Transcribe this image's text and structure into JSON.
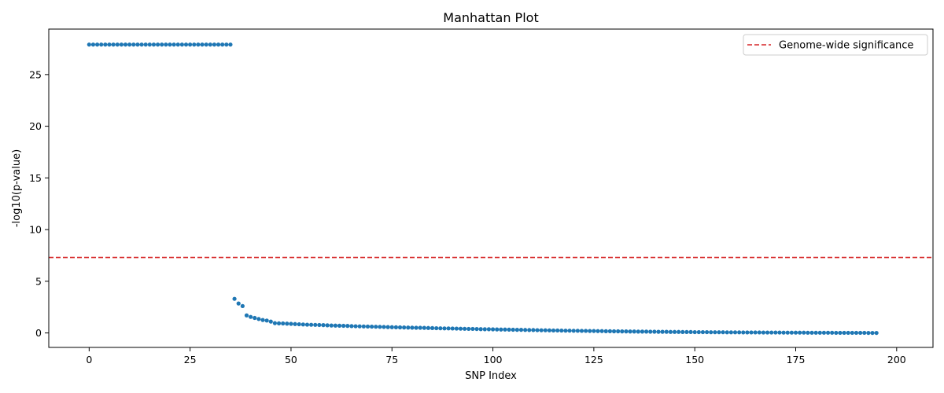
{
  "chart_data": {
    "type": "scatter",
    "title": "Manhattan Plot",
    "xlabel": "SNP Index",
    "ylabel": "-log10(p-value)",
    "xlim": [
      -10,
      209
    ],
    "ylim": [
      -1.4,
      29.4
    ],
    "xticks": [
      0,
      25,
      50,
      75,
      100,
      125,
      150,
      175,
      200
    ],
    "yticks": [
      0,
      5,
      10,
      15,
      20,
      25
    ],
    "grid": false,
    "legend_position": "top-right",
    "colors": {
      "points": "#1f77b4",
      "threshold": "#d62728"
    },
    "threshold": {
      "label": "Genome-wide significance",
      "y": 7.3
    },
    "series": [
      {
        "x_start": 0,
        "y": [
          27.9,
          27.9,
          27.9,
          27.9,
          27.9,
          27.9,
          27.9,
          27.9,
          27.9,
          27.9,
          27.9,
          27.9,
          27.9,
          27.9,
          27.9,
          27.9,
          27.9,
          27.9,
          27.9,
          27.9,
          27.9,
          27.9,
          27.9,
          27.9,
          27.9,
          27.9,
          27.9,
          27.9,
          27.9,
          27.9,
          27.9,
          27.9,
          27.9,
          27.9,
          27.9,
          27.9,
          3.3,
          2.85,
          2.6,
          1.7,
          1.55,
          1.45,
          1.35,
          1.25,
          1.2,
          1.1,
          0.95,
          0.93,
          0.92,
          0.9,
          0.88,
          0.86,
          0.84,
          0.82,
          0.8,
          0.79,
          0.78,
          0.77,
          0.76,
          0.74,
          0.72,
          0.71,
          0.7,
          0.69,
          0.68,
          0.66,
          0.65,
          0.64,
          0.63,
          0.62,
          0.61,
          0.6,
          0.59,
          0.58,
          0.57,
          0.56,
          0.55,
          0.54,
          0.53,
          0.52,
          0.51,
          0.5,
          0.5,
          0.49,
          0.48,
          0.47,
          0.46,
          0.45,
          0.44,
          0.44,
          0.43,
          0.42,
          0.41,
          0.4,
          0.39,
          0.39,
          0.38,
          0.37,
          0.36,
          0.36,
          0.35,
          0.34,
          0.33,
          0.33,
          0.32,
          0.31,
          0.3,
          0.3,
          0.29,
          0.28,
          0.28,
          0.27,
          0.26,
          0.26,
          0.25,
          0.24,
          0.24,
          0.23,
          0.22,
          0.22,
          0.21,
          0.21,
          0.2,
          0.2,
          0.19,
          0.19,
          0.18,
          0.18,
          0.17,
          0.17,
          0.16,
          0.16,
          0.15,
          0.15,
          0.14,
          0.14,
          0.13,
          0.13,
          0.13,
          0.12,
          0.12,
          0.11,
          0.11,
          0.11,
          0.1,
          0.1,
          0.1,
          0.09,
          0.09,
          0.09,
          0.08,
          0.08,
          0.08,
          0.08,
          0.07,
          0.07,
          0.07,
          0.07,
          0.06,
          0.06,
          0.06,
          0.06,
          0.05,
          0.05,
          0.05,
          0.05,
          0.05,
          0.04,
          0.04,
          0.04,
          0.04,
          0.04,
          0.03,
          0.03,
          0.03,
          0.03,
          0.03,
          0.03,
          0.02,
          0.02,
          0.02,
          0.02,
          0.02,
          0.02,
          0.02,
          0.01,
          0.01,
          0.01,
          0.01,
          0.01,
          0.01,
          0.01,
          0.01,
          0.0,
          0.0,
          0.0
        ]
      }
    ]
  }
}
